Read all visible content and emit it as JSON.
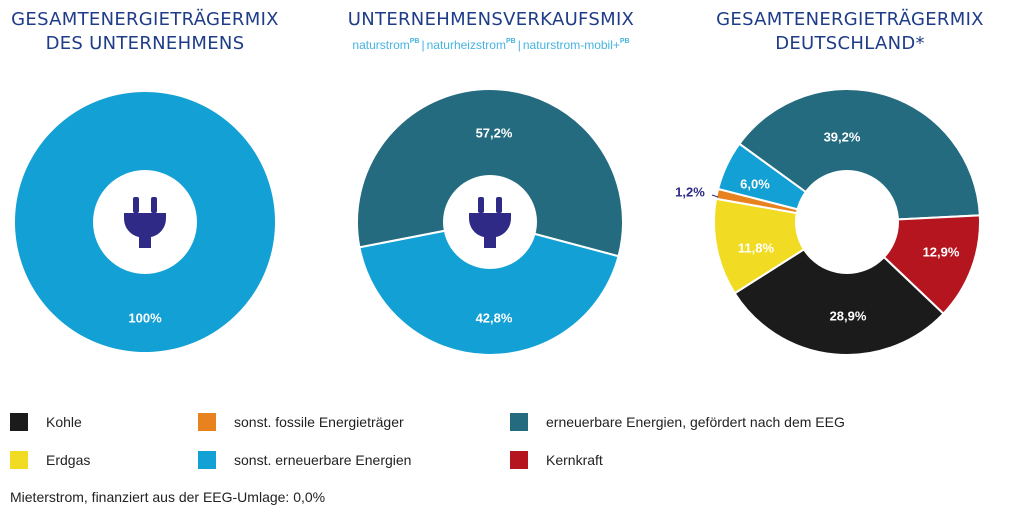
{
  "colors": {
    "title": "#1f3c88",
    "subtitle": "#46b3e0",
    "icon": "#2e2a85"
  },
  "titles": {
    "left": [
      "GESAMTENERGIETRÄGERMIX",
      "DES UNTERNEHMENS"
    ],
    "middle": [
      "UNTERNEHMENSVERKAUFSMIX"
    ],
    "right": [
      "GESAMTENERGIETRÄGERMIX",
      "DEUTSCHLAND*"
    ]
  },
  "subtitle": {
    "items": [
      {
        "text": "naturstrom",
        "sup": "PB"
      },
      {
        "text": "naturheizstrom",
        "sup": "PB"
      },
      {
        "text": "naturstrom-mobil+",
        "sup": "PB"
      }
    ]
  },
  "legend": [
    {
      "label": "Kohle",
      "color": "#1b1b1b"
    },
    {
      "label": "sonst. fossile Energieträger",
      "color": "#e8821e"
    },
    {
      "label": "erneuerbare Energien, gefördert nach dem EEG",
      "color": "#246b7f"
    },
    {
      "label": "Erdgas",
      "color": "#f2dc23"
    },
    {
      "label": "sonst. erneuerbare Energien",
      "color": "#13a0d4"
    },
    {
      "label": "Kernkraft",
      "color": "#b5151f"
    }
  ],
  "footnote": "Mieterstrom, finanziert aus der EEG-Umlage: 0,0%",
  "chart_data": [
    {
      "type": "pie",
      "id": "unternehmen",
      "title": "GESAMTENERGIETRÄGERMIX DES UNTERNEHMENS",
      "icon": "plug-icon",
      "slices": [
        {
          "name": "sonst. erneuerbare Energien",
          "value": 100,
          "label": "100%",
          "color": "#13a0d4"
        }
      ]
    },
    {
      "type": "pie",
      "id": "verkaufsmix",
      "title": "UNTERNEHMENSVERKAUFSMIX",
      "icon": "plug-icon",
      "slices": [
        {
          "name": "erneuerbare Energien, gefördert nach dem EEG",
          "value": 57.2,
          "label": "57,2%",
          "color": "#246b7f"
        },
        {
          "name": "sonst. erneuerbare Energien",
          "value": 42.8,
          "label": "42,8%",
          "color": "#13a0d4"
        }
      ]
    },
    {
      "type": "pie",
      "id": "deutschland",
      "title": "GESAMTENERGIETRÄGERMIX DEUTSCHLAND*",
      "slices": [
        {
          "name": "erneuerbare Energien, gefördert nach dem EEG",
          "value": 39.2,
          "label": "39,2%",
          "color": "#246b7f"
        },
        {
          "name": "Kernkraft",
          "value": 12.9,
          "label": "12,9%",
          "color": "#b5151f"
        },
        {
          "name": "Kohle",
          "value": 28.9,
          "label": "28,9%",
          "color": "#1b1b1b"
        },
        {
          "name": "Erdgas",
          "value": 11.8,
          "label": "11,8%",
          "color": "#f2dc23"
        },
        {
          "name": "sonst. fossile Energieträger",
          "value": 1.2,
          "label": "1,2%",
          "color": "#e8821e"
        },
        {
          "name": "sonst. erneuerbare Energien",
          "value": 6.0,
          "label": "6,0%",
          "color": "#13a0d4"
        }
      ]
    }
  ]
}
